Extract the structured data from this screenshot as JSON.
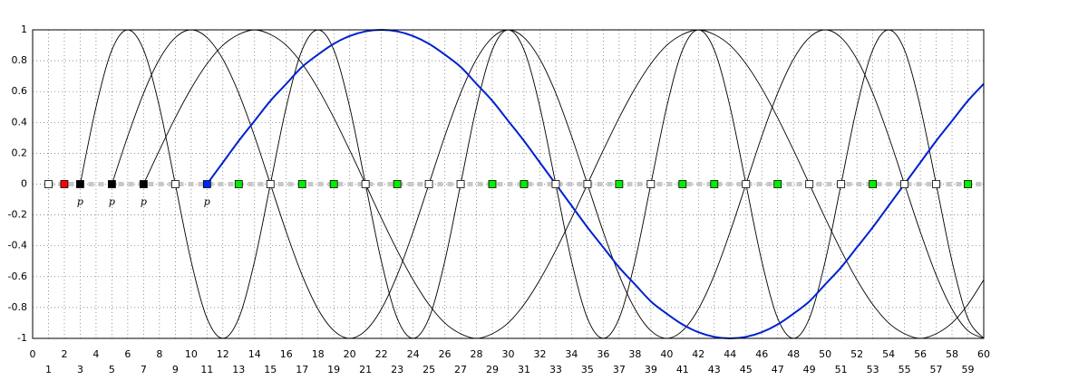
{
  "chart_data": {
    "type": "line",
    "xlim": [
      0,
      60
    ],
    "ylim": [
      -1,
      1
    ],
    "xticks": [
      0,
      1,
      2,
      3,
      4,
      5,
      6,
      7,
      8,
      9,
      10,
      11,
      12,
      13,
      14,
      15,
      16,
      17,
      18,
      19,
      20,
      21,
      22,
      23,
      24,
      25,
      26,
      27,
      28,
      29,
      30,
      31,
      32,
      33,
      34,
      35,
      36,
      37,
      38,
      39,
      40,
      41,
      42,
      43,
      44,
      45,
      46,
      47,
      48,
      49,
      50,
      51,
      52,
      53,
      54,
      55,
      56,
      57,
      58,
      59,
      60
    ],
    "yticks": [
      -1,
      -0.8,
      -0.6,
      -0.4,
      -0.2,
      0,
      0.2,
      0.4,
      0.6,
      0.8,
      1
    ],
    "grid": true,
    "x": [
      0,
      1,
      2,
      3,
      4,
      5,
      6,
      7,
      8,
      9,
      10,
      11,
      12,
      13,
      14,
      15,
      16,
      17,
      18,
      19,
      20,
      21,
      22,
      23,
      24,
      25,
      26,
      27,
      28,
      29,
      30,
      31,
      32,
      33,
      34,
      35,
      36,
      37,
      38,
      39,
      40,
      41,
      42,
      43,
      44,
      45,
      46,
      47,
      48,
      49,
      50,
      51,
      52,
      53,
      54,
      55,
      56,
      57,
      58,
      59,
      60
    ],
    "series": [
      {
        "color": "#000000",
        "values": [
          null,
          null,
          null,
          0,
          0.5,
          0.87,
          1,
          0.87,
          0.5,
          0,
          -0.5,
          -0.87,
          -1,
          -0.87,
          -0.5,
          0,
          0.5,
          0.87,
          1,
          0.87,
          0.5,
          0,
          -0.5,
          -0.87,
          -1,
          -0.87,
          -0.5,
          0,
          0.5,
          0.87,
          1,
          0.87,
          0.5,
          0,
          -0.5,
          -0.87,
          -1,
          -0.87,
          -0.5,
          0,
          0.5,
          0.87,
          1,
          0.87,
          0.5,
          0,
          -0.5,
          -0.87,
          -1,
          -0.87,
          -0.5,
          0,
          0.5,
          0.87,
          1,
          0.87,
          0.5,
          0,
          -0.5,
          -0.87,
          -1
        ]
      },
      {
        "color": "#000000",
        "values": [
          null,
          null,
          null,
          null,
          null,
          0,
          0.31,
          0.59,
          0.81,
          0.95,
          1,
          0.95,
          0.81,
          0.59,
          0.31,
          0,
          -0.31,
          -0.59,
          -0.81,
          -0.95,
          -1,
          -0.95,
          -0.81,
          -0.59,
          -0.31,
          0,
          0.31,
          0.59,
          0.81,
          0.95,
          1,
          0.95,
          0.81,
          0.59,
          0.31,
          0,
          -0.31,
          -0.59,
          -0.81,
          -0.95,
          -1,
          -0.95,
          -0.81,
          -0.59,
          -0.31,
          0,
          0.31,
          0.59,
          0.81,
          0.95,
          1,
          0.95,
          0.81,
          0.59,
          0.31,
          0,
          -0.31,
          -0.59,
          -0.81,
          -0.95,
          -1
        ]
      },
      {
        "color": "#000000",
        "values": [
          null,
          null,
          null,
          null,
          null,
          null,
          null,
          0,
          0.22,
          0.43,
          0.62,
          0.78,
          0.9,
          0.97,
          1,
          0.97,
          0.9,
          0.78,
          0.62,
          0.43,
          0.22,
          0,
          -0.22,
          -0.43,
          -0.62,
          -0.78,
          -0.9,
          -0.97,
          -1,
          -0.97,
          -0.9,
          -0.78,
          -0.62,
          -0.43,
          -0.22,
          0,
          0.22,
          0.43,
          0.62,
          0.78,
          0.9,
          0.97,
          1,
          0.97,
          0.9,
          0.78,
          0.62,
          0.43,
          0.22,
          0,
          -0.22,
          -0.43,
          -0.62,
          -0.78,
          -0.9,
          -0.97,
          -1,
          -0.97,
          -0.9,
          -0.78,
          -0.62
        ]
      },
      {
        "color": "#0022cc",
        "values": [
          null,
          null,
          null,
          null,
          null,
          null,
          null,
          null,
          null,
          null,
          null,
          0,
          0.14,
          0.28,
          0.41,
          0.54,
          0.65,
          0.76,
          0.84,
          0.91,
          0.96,
          0.99,
          1,
          0.99,
          0.96,
          0.91,
          0.84,
          0.76,
          0.65,
          0.54,
          0.41,
          0.28,
          0.14,
          0,
          -0.14,
          -0.28,
          -0.41,
          -0.54,
          -0.65,
          -0.76,
          -0.84,
          -0.91,
          -0.96,
          -0.99,
          -1,
          -0.99,
          -0.96,
          -0.91,
          -0.84,
          -0.76,
          -0.65,
          -0.54,
          -0.41,
          -0.28,
          -0.14,
          0,
          0.14,
          0.28,
          0.41,
          0.54,
          0.65
        ]
      }
    ],
    "markers": {
      "x": [
        1,
        2,
        3,
        5,
        7,
        9,
        11,
        13,
        15,
        17,
        19,
        21,
        23,
        25,
        27,
        29,
        31,
        33,
        35,
        37,
        39,
        41,
        43,
        45,
        47,
        49,
        51,
        53,
        55,
        57,
        59
      ],
      "y": [
        0,
        0,
        0,
        0,
        0,
        0,
        0,
        0,
        0,
        0,
        0,
        0,
        0,
        0,
        0,
        0,
        0,
        0,
        0,
        0,
        0,
        0,
        0,
        0,
        0,
        0,
        0,
        0,
        0,
        0,
        0
      ],
      "colors": [
        "#ffffff",
        "#ff0000",
        "#000000",
        "#000000",
        "#000000",
        "#ffffff",
        "#0022ff",
        "#00ee00",
        "#ffffff",
        "#00ee00",
        "#00ee00",
        "#ffffff",
        "#00ee00",
        "#ffffff",
        "#ffffff",
        "#00ee00",
        "#00ee00",
        "#ffffff",
        "#ffffff",
        "#00ee00",
        "#ffffff",
        "#00ee00",
        "#00ee00",
        "#ffffff",
        "#00ee00",
        "#ffffff",
        "#ffffff",
        "#00ee00",
        "#ffffff",
        "#ffffff",
        "#00ee00"
      ]
    },
    "annotations": [
      {
        "x": 3,
        "text": "p"
      },
      {
        "x": 5,
        "text": "p"
      },
      {
        "x": 7,
        "text": "p"
      },
      {
        "x": 11,
        "text": "p"
      }
    ]
  }
}
